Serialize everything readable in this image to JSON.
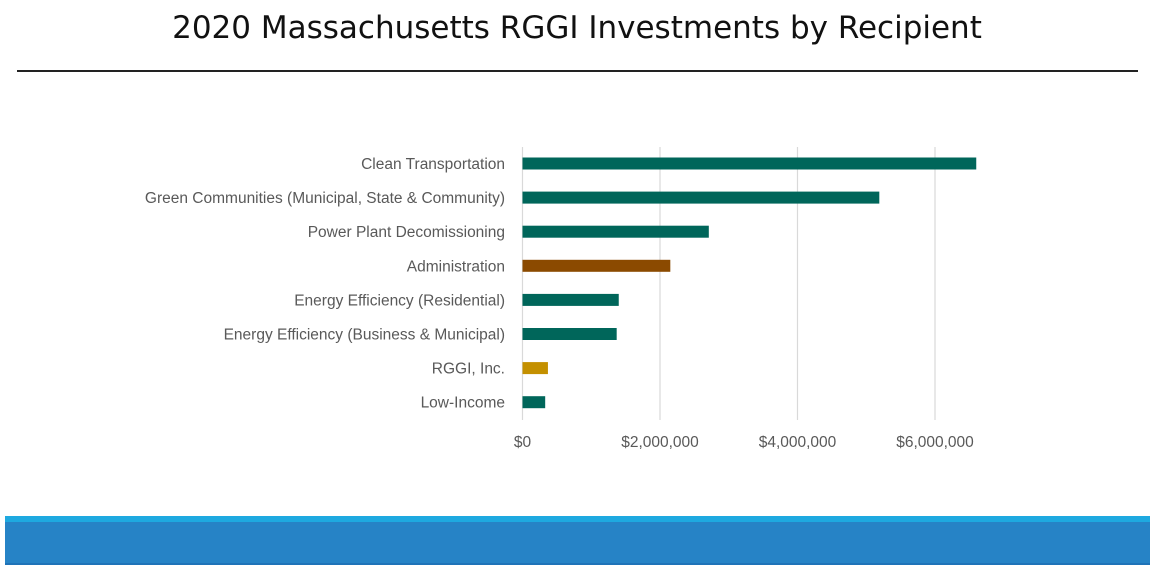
{
  "chart_data": {
    "type": "bar",
    "orientation": "horizontal",
    "title": "2020 Massachusetts RGGI Investments by Recipient",
    "xlabel": "",
    "ylabel": "",
    "categories": [
      "Clean Transportation",
      "Green Communities (Municipal, State & Community)",
      "Power Plant Decomissioning",
      "Administration",
      "Energy Efficiency (Residential)",
      "Energy Efficiency (Business & Municipal)",
      "RGGI, Inc.",
      "Low-Income"
    ],
    "values": [
      6600000,
      5190000,
      2710000,
      2150000,
      1400000,
      1370000,
      370000,
      330000
    ],
    "bar_colors": [
      "#00665a",
      "#00665a",
      "#00665a",
      "#8b4a00",
      "#00665a",
      "#00665a",
      "#c49000",
      "#00665a"
    ],
    "xlim": [
      0,
      6600000
    ],
    "x_ticks": [
      0,
      2000000,
      4000000,
      6000000
    ],
    "x_tick_labels": [
      "$0",
      "$2,000,000",
      "$4,000,000",
      "$6,000,000"
    ],
    "grid": "vertical",
    "legend": "none"
  },
  "colors": {
    "primary_bar": "#00665a",
    "administration_bar": "#8b4a00",
    "rggi_bar": "#c49000",
    "footer_blue": "#2683c6",
    "footer_stripe": "#1ea9e0"
  }
}
